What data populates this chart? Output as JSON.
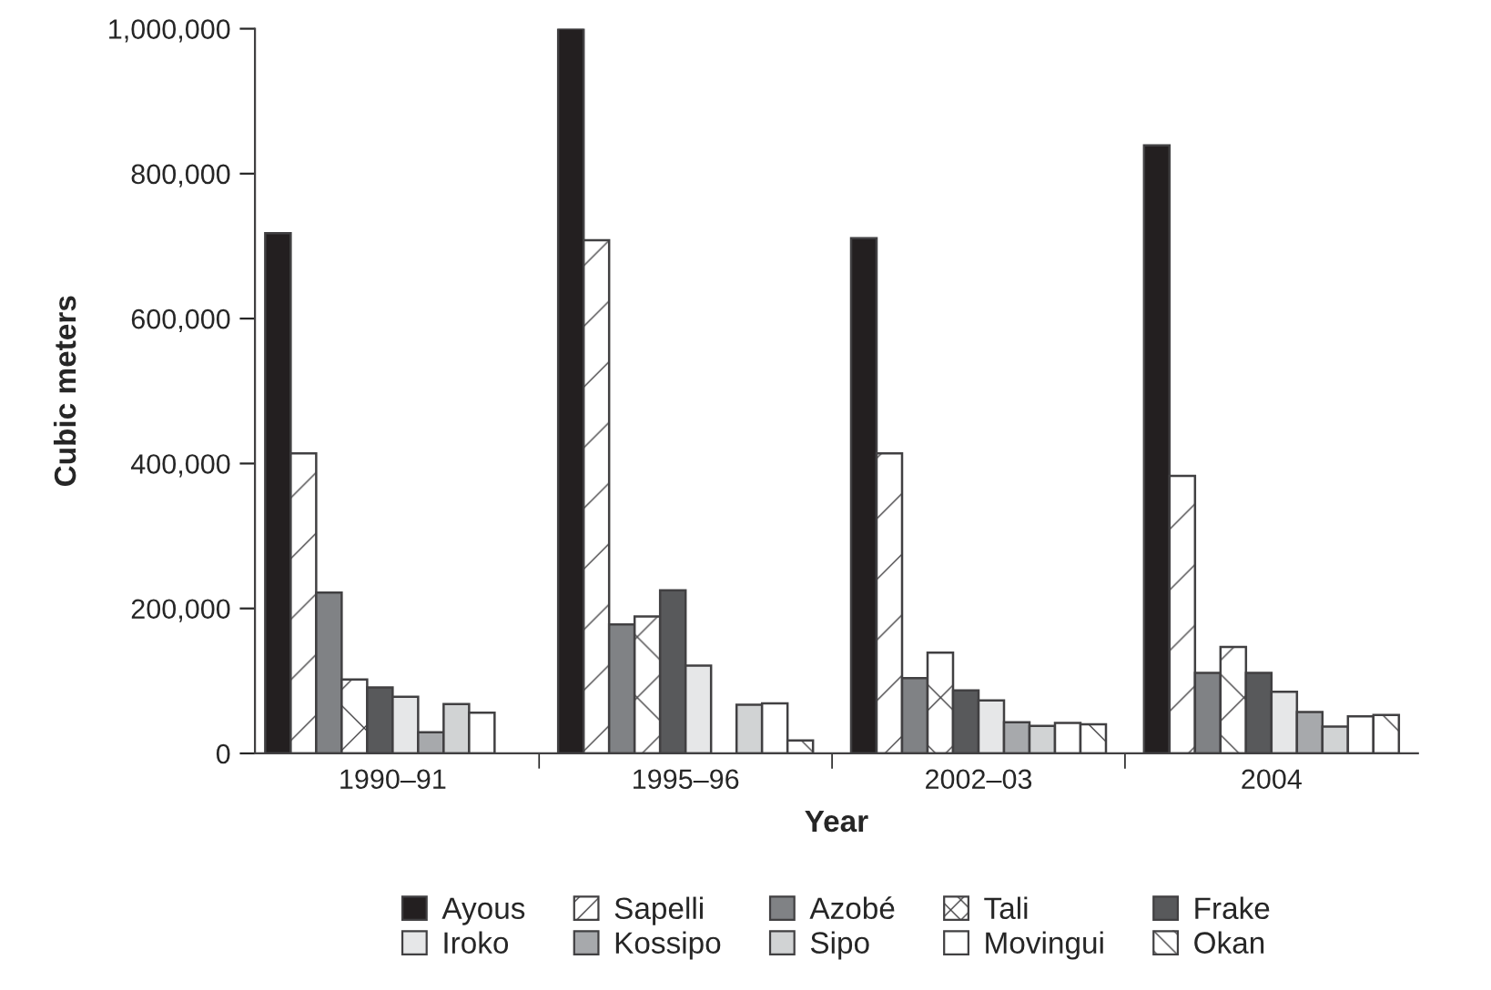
{
  "chart_data": {
    "type": "bar",
    "xlabel": "Year",
    "ylabel": "Cubic meters",
    "categories": [
      "1990–91",
      "1995–96",
      "2002–03",
      "2004"
    ],
    "series": [
      {
        "name": "Ayous",
        "color": "#231f20",
        "values": [
          718000,
          1000000,
          711000,
          839000
        ]
      },
      {
        "name": "Sapelli",
        "color": "#ffffff",
        "values": [
          414000,
          708000,
          414000,
          383000
        ]
      },
      {
        "name": "Azobé",
        "color": "#808285",
        "values": [
          222000,
          178000,
          104000,
          111000
        ]
      },
      {
        "name": "Tali",
        "color": "#ffffff",
        "values": [
          102000,
          189000,
          139000,
          147000
        ]
      },
      {
        "name": "Frake",
        "color": "#58595b",
        "values": [
          91000,
          225000,
          87000,
          111000
        ]
      },
      {
        "name": "Iroko",
        "color": "#e6e7e8",
        "values": [
          78000,
          121000,
          73000,
          85000
        ]
      },
      {
        "name": "Kossipo",
        "color": "#a7a9ac",
        "values": [
          29000,
          null,
          43000,
          57000
        ]
      },
      {
        "name": "Sipo",
        "color": "#d1d3d4",
        "values": [
          68000,
          67000,
          38000,
          37000
        ]
      },
      {
        "name": "Movingui",
        "color": "#ffffff",
        "values": [
          56000,
          69000,
          42000,
          51000
        ]
      },
      {
        "name": "Okan",
        "color": "#ffffff",
        "values": [
          null,
          18000,
          40000,
          53000
        ]
      }
    ],
    "ylim": [
      0,
      1000000
    ],
    "yticks": [
      {
        "value": 0,
        "label": "0"
      },
      {
        "value": 200000,
        "label": "200,000"
      },
      {
        "value": 400000,
        "label": "400,000"
      },
      {
        "value": 600000,
        "label": "600,000"
      },
      {
        "value": 800000,
        "label": "800,000"
      },
      {
        "value": 1000000,
        "label": "1,000,000"
      }
    ],
    "grid": false,
    "legend": "bottom"
  }
}
